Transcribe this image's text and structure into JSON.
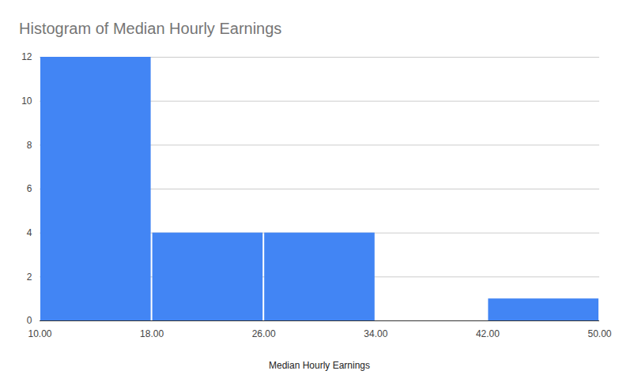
{
  "chart_data": {
    "type": "histogram",
    "title": "Histogram of Median Hourly Earnings",
    "x_label": "Median Hourly Earnings",
    "bins": [
      10,
      18,
      26,
      34,
      42,
      50
    ],
    "values": [
      12,
      4,
      4,
      0,
      1
    ],
    "color": "#4285f4",
    "xlim": [
      10,
      50
    ],
    "xticks": [
      {
        "value": 10,
        "label": "10.00"
      },
      {
        "value": 18,
        "label": "18.00"
      },
      {
        "value": 26,
        "label": "26.00"
      },
      {
        "value": 34,
        "label": "34.00"
      },
      {
        "value": 42,
        "label": "42.00"
      },
      {
        "value": 50,
        "label": "50.00"
      }
    ],
    "ylim": [
      0,
      12
    ],
    "yticks": [
      0,
      2,
      4,
      6,
      8,
      10,
      12
    ],
    "grid": true
  }
}
